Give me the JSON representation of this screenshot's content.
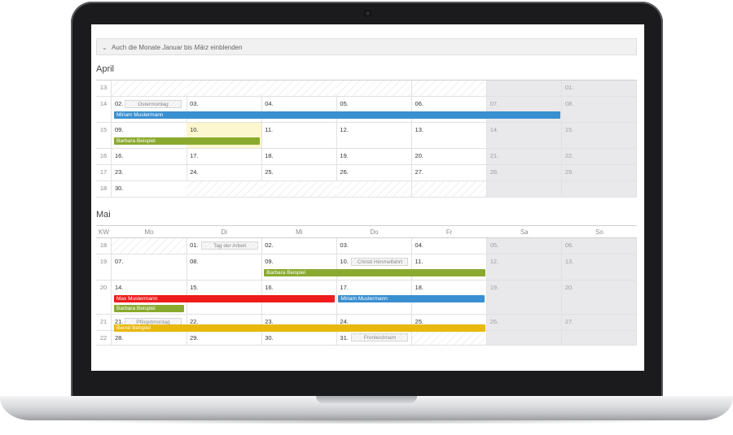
{
  "toggle": {
    "prefix": "Auch die Monate ",
    "m1": "Januar",
    "mid": " bis ",
    "m2": "März",
    "suffix": " einblenden"
  },
  "colors": {
    "blue": "#3a8fd0",
    "olive": "#8aaa2f",
    "red": "#ee1c1c",
    "yellow": "#e8b80c",
    "today": "#fdf7cf",
    "weekend": "#e9e9eb"
  },
  "april": {
    "title": "April",
    "weeks": [
      {
        "kw": "13",
        "days": [
          "",
          "",
          "",
          "",
          "",
          "",
          "01."
        ]
      },
      {
        "kw": "14",
        "days": [
          "02.",
          "03.",
          "04.",
          "05.",
          "06.",
          "07.",
          "08."
        ]
      },
      {
        "kw": "15",
        "days": [
          "09.",
          "10.",
          "11.",
          "12.",
          "13.",
          "14.",
          "15."
        ]
      },
      {
        "kw": "16",
        "days": [
          "16.",
          "17.",
          "18.",
          "19.",
          "20.",
          "21.",
          "22."
        ]
      },
      {
        "kw": "17",
        "days": [
          "23.",
          "24.",
          "25.",
          "26.",
          "27.",
          "28.",
          "29."
        ]
      },
      {
        "kw": "18",
        "days": [
          "30.",
          "",
          "",
          "",
          "",
          "",
          ""
        ]
      }
    ],
    "holidays": [
      {
        "label": "Ostermontag"
      }
    ],
    "events": [
      {
        "label": "Miriam Mustermann",
        "color": "blue"
      },
      {
        "label": "Barbara Beispiel",
        "color": "olive"
      }
    ]
  },
  "mai": {
    "title": "Mai",
    "header": {
      "kw": "KW",
      "days": [
        "Mo",
        "Di",
        "Mi",
        "Do",
        "Fr",
        "Sa",
        "So"
      ]
    },
    "weeks": [
      {
        "kw": "18",
        "days": [
          "",
          "01.",
          "02.",
          "03.",
          "04.",
          "05.",
          "06."
        ]
      },
      {
        "kw": "19",
        "days": [
          "07.",
          "08.",
          "09.",
          "10.",
          "11.",
          "12.",
          "13."
        ]
      },
      {
        "kw": "20",
        "days": [
          "14.",
          "15.",
          "16.",
          "17.",
          "18.",
          "19.",
          "20."
        ]
      },
      {
        "kw": "21",
        "days": [
          "21.",
          "22.",
          "23.",
          "24.",
          "25.",
          "26.",
          "27."
        ]
      },
      {
        "kw": "22",
        "days": [
          "28.",
          "29.",
          "30.",
          "31.",
          "",
          "",
          ""
        ]
      }
    ],
    "holidays": [
      {
        "label": "Tag der Arbeit"
      },
      {
        "label": "Christi Himmelfahrt"
      },
      {
        "label": "Pfingstmontag"
      },
      {
        "label": "Fronleichnam"
      }
    ],
    "events": [
      {
        "label": "Barbara Beispiel",
        "color": "olive"
      },
      {
        "label": "Max Mustermann",
        "color": "red"
      },
      {
        "label": "Miriam Mustermann",
        "color": "blue"
      },
      {
        "label": "Barbara Beispiel",
        "color": "olive"
      },
      {
        "label": "Bernd Beispiel",
        "color": "yellow"
      }
    ]
  }
}
